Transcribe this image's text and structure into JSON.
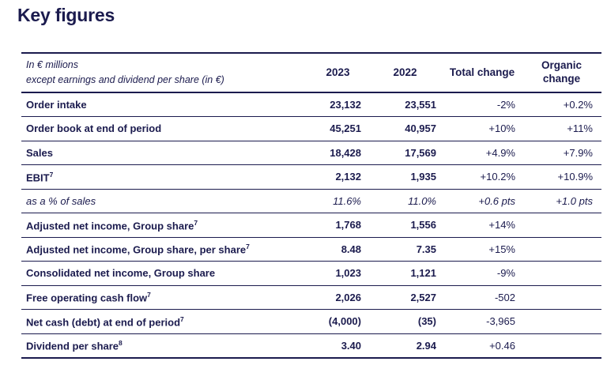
{
  "title": "Key figures",
  "colors": {
    "navy": "#1b1b4e",
    "background": "#ffffff"
  },
  "table": {
    "unit_note_line1": "In € millions",
    "unit_note_line2": "except earnings and dividend per share (in €)",
    "columns": [
      "2023",
      "2022",
      "Total change",
      "Organic change"
    ],
    "rows": [
      {
        "label": "Order intake",
        "sup": "",
        "values": [
          "23,132",
          "23,551",
          "-2%",
          "+0.2%"
        ],
        "italic": false
      },
      {
        "label": "Order book at end of period",
        "sup": "",
        "values": [
          "45,251",
          "40,957",
          "+10%",
          "+11%"
        ],
        "italic": false
      },
      {
        "label": "Sales",
        "sup": "",
        "values": [
          "18,428",
          "17,569",
          "+4.9%",
          "+7.9%"
        ],
        "italic": false
      },
      {
        "label": "EBIT",
        "sup": "7",
        "values": [
          "2,132",
          "1,935",
          "+10.2%",
          "+10.9%"
        ],
        "italic": false
      },
      {
        "label": "as a % of sales",
        "sup": "",
        "values": [
          "11.6%",
          "11.0%",
          "+0.6 pts",
          "+1.0 pts"
        ],
        "italic": true
      },
      {
        "label": "Adjusted net income, Group share",
        "sup": "7",
        "values": [
          "1,768",
          "1,556",
          "+14%",
          ""
        ],
        "italic": false
      },
      {
        "label": "Adjusted net income, Group share, per share",
        "sup": "7",
        "values": [
          "8.48",
          "7.35",
          "+15%",
          ""
        ],
        "italic": false
      },
      {
        "label": "Consolidated net income, Group share",
        "sup": "",
        "values": [
          "1,023",
          "1,121",
          "-9%",
          ""
        ],
        "italic": false
      },
      {
        "label": "Free operating cash flow",
        "sup": "7",
        "values": [
          "2,026",
          "2,527",
          "-502",
          ""
        ],
        "italic": false
      },
      {
        "label": "Net cash (debt) at end of period",
        "sup": "7",
        "values": [
          "(4,000)",
          "(35)",
          "-3,965",
          ""
        ],
        "italic": false
      },
      {
        "label": "Dividend per share",
        "sup": "8",
        "values": [
          "3.40",
          "2.94",
          "+0.46",
          ""
        ],
        "italic": false
      }
    ]
  }
}
